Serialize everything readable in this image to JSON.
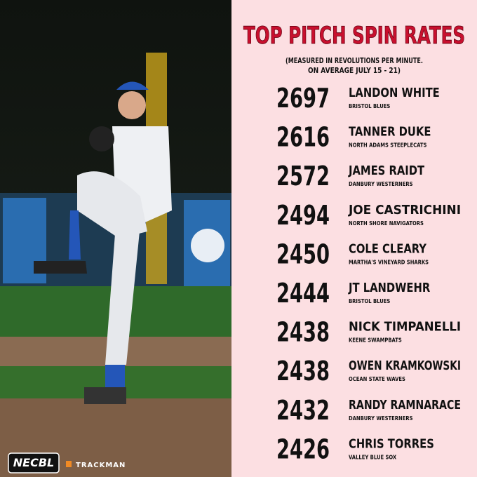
{
  "header": {
    "title": "TOP PITCH SPIN RATES",
    "subtitle": [
      "(MEASURED IN REVOLUTIONS PER MINUTE.",
      "ON AVERAGE JULY 15 - 21)"
    ]
  },
  "entries": [
    {
      "rpm": 2697,
      "name": "LANDON WHITE",
      "team": "BRISTOL BLUES"
    },
    {
      "rpm": 2616,
      "name": "TANNER DUKE",
      "team": "NORTH ADAMS STEEPLECATS"
    },
    {
      "rpm": 2572,
      "name": "JAMES RAIDT",
      "team": "DANBURY WESTERNERS"
    },
    {
      "rpm": 2494,
      "name": "JOE CASTRICHINI",
      "team": "NORTH SHORE NAVIGATORS"
    },
    {
      "rpm": 2450,
      "name": "COLE CLEARY",
      "team": "MARTHA'S VINEYARD SHARKS"
    },
    {
      "rpm": 2444,
      "name": "JT LANDWEHR",
      "team": "BRISTOL BLUES"
    },
    {
      "rpm": 2438,
      "name": "NICK TIMPANELLI",
      "team": "KEENE SWAMPBATS"
    },
    {
      "rpm": 2438,
      "name": "OWEN KRAMKOWSKI",
      "team": "OCEAN STATE WAVES"
    },
    {
      "rpm": 2432,
      "name": "RANDY RAMNARACE",
      "team": "DANBURY WESTERNERS"
    },
    {
      "rpm": 2426,
      "name": "CHRIS TORRES",
      "team": "VALLEY BLUE SOX"
    }
  ],
  "logos": {
    "league": "NECBL",
    "sponsor": "TRACKMAN"
  }
}
